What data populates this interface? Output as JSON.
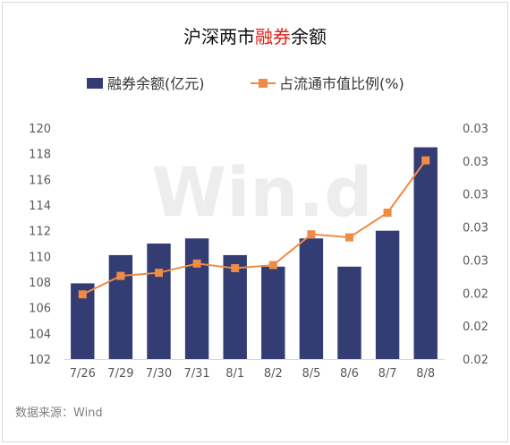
{
  "chart_data": {
    "type": "bar+line",
    "title_parts": [
      "沪深两市",
      "融券",
      "余额"
    ],
    "categories": [
      "7/26",
      "7/29",
      "7/30",
      "7/31",
      "8/1",
      "8/2",
      "8/5",
      "8/6",
      "8/7",
      "8/8"
    ],
    "series": [
      {
        "name": "融券余额(亿元)",
        "type": "bar",
        "axis": "left",
        "color": "#333d73",
        "values": [
          107.9,
          110.1,
          111.0,
          111.4,
          110.1,
          109.2,
          111.4,
          109.2,
          112.0,
          118.5
        ]
      },
      {
        "name": "占流通市值比例(%)",
        "type": "line",
        "axis": "right",
        "color": "#f08b43",
        "values": [
          0.0242,
          0.0254,
          0.0256,
          0.0262,
          0.0259,
          0.0261,
          0.0281,
          0.0279,
          0.0295,
          0.0329
        ]
      }
    ],
    "yleft": {
      "min": 102,
      "max": 120,
      "ticks": [
        "120",
        "118",
        "116",
        "114",
        "112",
        "110",
        "108",
        "106",
        "104",
        "102"
      ]
    },
    "yright": {
      "min": 0.02,
      "max": 0.035,
      "ticks": [
        "0.03",
        "0.03",
        "0.03",
        "0.03",
        "0.03",
        "0.02",
        "0.02",
        "0.02"
      ]
    },
    "watermark": "Win.d",
    "legend_position": "top",
    "grid": false
  },
  "source_label": "数据来源：Wind"
}
